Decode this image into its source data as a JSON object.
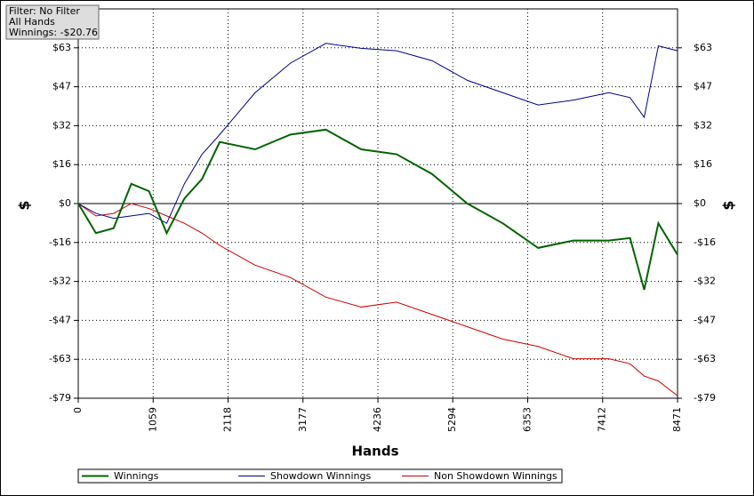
{
  "chart_data": {
    "type": "line",
    "info": [
      "Filter: No Filter",
      "All Hands",
      "Winnings: -$20.76"
    ],
    "x_label": "Hands",
    "y_label": "$",
    "x": [
      0,
      250,
      500,
      750,
      1000,
      1250,
      1500,
      1750,
      2000,
      2500,
      3000,
      3500,
      4000,
      4500,
      5000,
      5500,
      6000,
      6500,
      7000,
      7500,
      7800,
      8000,
      8200,
      8471
    ],
    "series": [
      {
        "name": "Winnings",
        "color": "#006400",
        "values": [
          0,
          -12,
          -10,
          8,
          5,
          -12,
          2,
          10,
          25,
          22,
          28,
          30,
          22,
          20,
          12,
          0,
          -8,
          -18,
          -15,
          -15,
          -14,
          -35,
          -8,
          -20.76
        ]
      },
      {
        "name": "Showdown Winnings",
        "color": "#00008b",
        "values": [
          0,
          -4,
          -6,
          -5,
          -4,
          -8,
          8,
          20,
          28,
          45,
          57,
          65,
          63,
          62,
          58,
          50,
          45,
          40,
          42,
          45,
          43,
          35,
          64,
          62
        ]
      },
      {
        "name": "Non Showdown Winnings",
        "color": "#cc0000",
        "values": [
          0,
          -5,
          -4,
          0,
          -2,
          -5,
          -8,
          -12,
          -17,
          -25,
          -30,
          -38,
          -42,
          -40,
          -45,
          -50,
          -55,
          -58,
          -63,
          -63,
          -65,
          -70,
          -72,
          -78
        ]
      }
    ],
    "xlim": [
      0,
      8471
    ],
    "xticks": [
      0,
      1059,
      2118,
      3177,
      4236,
      5294,
      6353,
      7412,
      8471
    ],
    "ylim": [
      -79,
      79
    ],
    "yticks": [
      {
        "value": -79,
        "label": "-$79"
      },
      {
        "value": -63.2,
        "label": "-$63"
      },
      {
        "value": -47.4,
        "label": "-$47"
      },
      {
        "value": -31.6,
        "label": "-$32"
      },
      {
        "value": -15.8,
        "label": "-$16"
      },
      {
        "value": 0,
        "label": "$0"
      },
      {
        "value": 15.8,
        "label": "$16"
      },
      {
        "value": 31.6,
        "label": "$32"
      },
      {
        "value": 47.4,
        "label": "$47"
      },
      {
        "value": 63.2,
        "label": "$63"
      }
    ],
    "grid": true
  }
}
